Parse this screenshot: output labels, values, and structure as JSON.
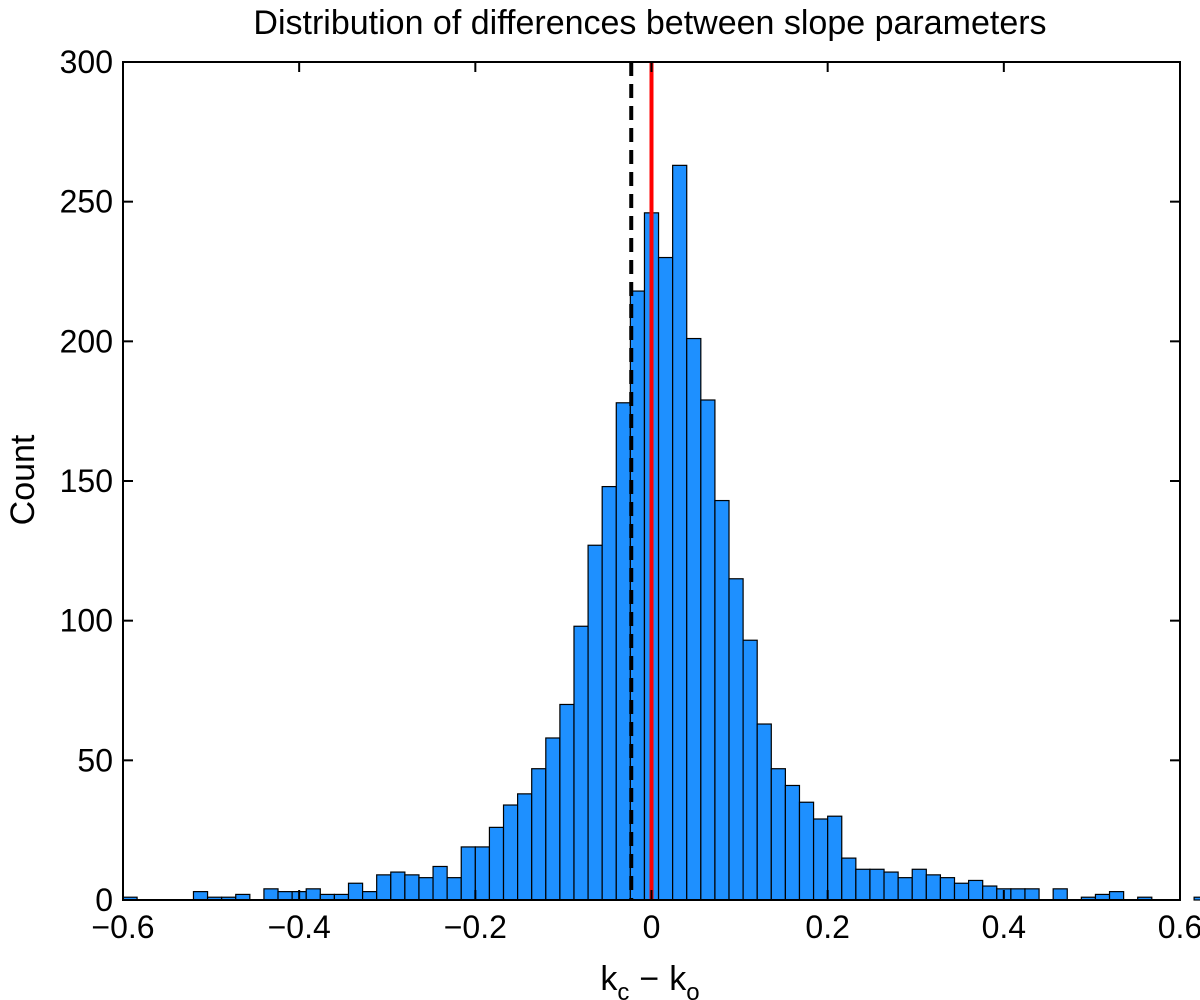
{
  "chart_data": {
    "type": "bar",
    "title": "Distribution of differences between slope parameters",
    "xlabel": {
      "base": "k",
      "sub1": "c",
      "minus": "−",
      "base2": "k",
      "sub2": "o"
    },
    "ylabel": "Count",
    "xlim": [
      -0.6,
      0.6
    ],
    "ylim": [
      0,
      300
    ],
    "xticks": [
      -0.6,
      -0.4,
      -0.2,
      0,
      0.2,
      0.4,
      0.6
    ],
    "xtick_labels": [
      "−0.6",
      "−0.4",
      "−0.2",
      "0",
      "0.2",
      "0.4",
      "0.6"
    ],
    "yticks": [
      0,
      50,
      100,
      150,
      200,
      250,
      300
    ],
    "ytick_labels": [
      "0",
      "50",
      "100",
      "150",
      "200",
      "250",
      "300"
    ],
    "bin_start": -0.6,
    "bin_width": 0.016,
    "values": [
      1,
      0,
      0,
      0,
      0,
      3,
      1,
      1,
      2,
      0,
      4,
      3,
      3,
      4,
      2,
      2,
      6,
      3,
      9,
      10,
      9,
      8,
      12,
      8,
      19,
      19,
      26,
      34,
      38,
      47,
      58,
      70,
      98,
      127,
      148,
      178,
      218,
      246,
      230,
      263,
      201,
      179,
      143,
      115,
      93,
      63,
      47,
      41,
      35,
      29,
      30,
      15,
      11,
      11,
      10,
      8,
      11,
      9,
      8,
      6,
      7,
      5,
      4,
      4,
      4,
      0,
      4,
      0,
      1,
      2,
      3,
      0,
      1,
      0,
      0,
      0,
      1
    ],
    "bar_color": "#1e90ff",
    "reference_lines": [
      {
        "x": -0.023,
        "style": "dashed",
        "color": "#000000"
      },
      {
        "x": 0.0,
        "style": "solid",
        "color": "#ff0000"
      }
    ],
    "grid": false
  }
}
